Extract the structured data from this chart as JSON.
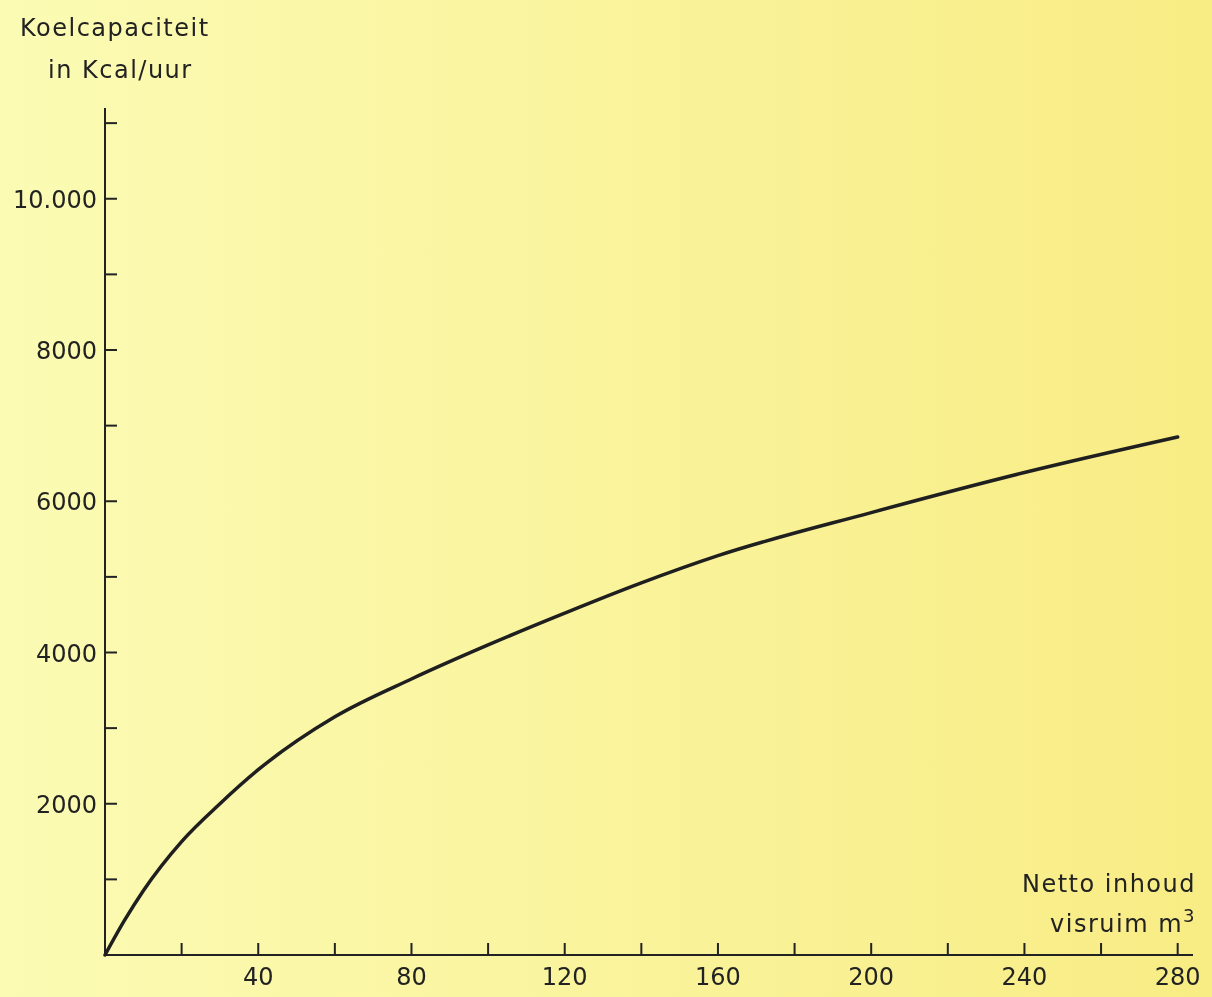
{
  "chart_data": {
    "type": "line",
    "ylabel": "Koelcapaciteit\nin Kcal/uur",
    "xlabel": "Netto inhoud\nvisruim m$^{3}$",
    "x": [
      0,
      5,
      10,
      20,
      30,
      40,
      60,
      80,
      100,
      120,
      140,
      160,
      200,
      240,
      280
    ],
    "series": [
      {
        "color": "#1f1f1f",
        "values": [
          0,
          450,
          850,
          1500,
          2000,
          2450,
          3150,
          3650,
          4100,
          4520,
          4920,
          5280,
          5850,
          6380,
          6850
        ]
      }
    ],
    "xlim": [
      0,
      284
    ],
    "ylim": [
      0,
      11200
    ],
    "xticks": [
      {
        "value": 20,
        "label": null
      },
      40,
      {
        "value": 60,
        "label": null
      },
      80,
      {
        "value": 100,
        "label": null
      },
      120,
      {
        "value": 140,
        "label": null
      },
      160,
      {
        "value": 180,
        "label": null
      },
      200,
      {
        "value": 220,
        "label": null
      },
      240,
      {
        "value": 260,
        "label": null
      },
      280
    ],
    "yticks": [
      {
        "value": 1000,
        "label": null
      },
      2000,
      {
        "value": 3000,
        "label": null
      },
      4000,
      {
        "value": 5000,
        "label": null
      },
      6000,
      {
        "value": 7000,
        "label": null
      },
      8000,
      {
        "value": 9000,
        "label": null
      },
      {
        "value": 10000,
        "label": "10.000"
      },
      {
        "value": 11000,
        "label": null
      }
    ],
    "grid": false,
    "marker": "none",
    "line_style": "solid"
  }
}
